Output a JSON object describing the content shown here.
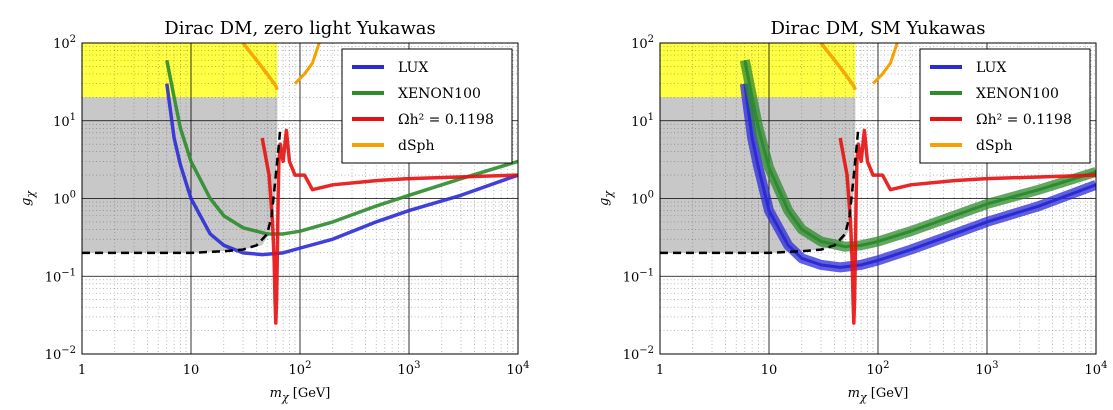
{
  "chart_data": [
    {
      "type": "line",
      "title": "Dirac DM, zero light Yukawas",
      "xlabel": "m_χ [GeV]",
      "ylabel": "g_χ",
      "xscale": "log",
      "yscale": "log",
      "xlim": [
        1,
        10000
      ],
      "ylim": [
        0.01,
        100
      ],
      "xticks": [
        1,
        10,
        100,
        1000,
        10000
      ],
      "xtick_labels": [
        "1",
        "10",
        "10",
        "10",
        "10"
      ],
      "xtick_sup": [
        "",
        "",
        "2",
        "3",
        "4"
      ],
      "yticks": [
        0.01,
        0.1,
        1,
        10,
        100
      ],
      "ytick_labels": [
        "10",
        "10",
        "10",
        "10",
        "10"
      ],
      "ytick_sup": [
        "−2",
        "−1",
        "0",
        "1",
        "2"
      ],
      "grid": true,
      "legend_position": "top-right",
      "shaded_regions": [
        {
          "kind": "excluded",
          "color": "#c8c8c8",
          "x": [
            1,
            62
          ],
          "y_from": [
            0.2,
            0.2,
            0.22,
            0.25,
            0.4,
            1.5,
            8
          ],
          "x_points": [
            1,
            10,
            30,
            45,
            55,
            60,
            62
          ],
          "y_to": 100
        },
        {
          "kind": "dSph",
          "color": "#ffff44",
          "x": [
            1,
            62
          ],
          "y_from": 20,
          "y_to": 100
        }
      ],
      "series": [
        {
          "name": "LUX",
          "color": "#2b2bd6",
          "band": false,
          "x": [
            6,
            7,
            8,
            10,
            15,
            20,
            30,
            45,
            70,
            100,
            200,
            500,
            1000,
            3000,
            10000
          ],
          "y": [
            30,
            6,
            2.7,
            1.0,
            0.35,
            0.25,
            0.2,
            0.19,
            0.2,
            0.23,
            0.3,
            0.5,
            0.7,
            1.1,
            2.0
          ]
        },
        {
          "name": "XENON100",
          "color": "#2e8b2e",
          "band": false,
          "x": [
            6,
            7,
            8,
            10,
            15,
            20,
            30,
            50,
            70,
            100,
            200,
            500,
            1000,
            3000,
            10000
          ],
          "y": [
            60,
            20,
            8,
            3,
            1,
            0.6,
            0.42,
            0.35,
            0.35,
            0.38,
            0.5,
            0.8,
            1.1,
            1.8,
            3.0
          ]
        },
        {
          "name": "Ωh² = 0.1198",
          "color": "#e81010",
          "band": false,
          "x": [
            45,
            52,
            56,
            58,
            59,
            60,
            61,
            62,
            63,
            64,
            66,
            70,
            75,
            80,
            90,
            110,
            130,
            200,
            500,
            1000,
            10000
          ],
          "y": [
            6,
            2,
            0.5,
            0.15,
            0.05,
            0.025,
            0.05,
            0.2,
            1,
            3,
            5,
            3,
            7.5,
            3,
            2,
            2,
            1.3,
            1.5,
            1.7,
            1.8,
            2.0
          ]
        },
        {
          "name": "dSph",
          "color": "#f5a100",
          "band": false,
          "x": [
            30,
            40,
            50,
            60,
            62
          ],
          "y": [
            100,
            60,
            40,
            28,
            25
          ],
          "x2": [
            90,
            100,
            110,
            130,
            150
          ],
          "y2": [
            30,
            35,
            40,
            55,
            100
          ]
        },
        {
          "name": "",
          "color": "#000000",
          "dashed": true,
          "x": [
            1,
            5,
            10,
            20,
            30,
            40,
            50,
            55,
            60,
            64,
            66
          ],
          "y": [
            0.2,
            0.2,
            0.2,
            0.21,
            0.22,
            0.25,
            0.35,
            0.6,
            2,
            5,
            8
          ]
        }
      ]
    },
    {
      "type": "line",
      "title": "Dirac DM, SM Yukawas",
      "xlabel": "m_χ [GeV]",
      "ylabel": "g_χ",
      "xscale": "log",
      "yscale": "log",
      "xlim": [
        1,
        10000
      ],
      "ylim": [
        0.01,
        100
      ],
      "xticks": [
        1,
        10,
        100,
        1000,
        10000
      ],
      "xtick_labels": [
        "1",
        "10",
        "10",
        "10",
        "10"
      ],
      "xtick_sup": [
        "",
        "",
        "2",
        "3",
        "4"
      ],
      "yticks": [
        0.01,
        0.1,
        1,
        10,
        100
      ],
      "ytick_labels": [
        "10",
        "10",
        "10",
        "10",
        "10"
      ],
      "ytick_sup": [
        "−2",
        "−1",
        "0",
        "1",
        "2"
      ],
      "grid": true,
      "legend_position": "top-right",
      "shaded_regions": [
        {
          "kind": "excluded",
          "color": "#c8c8c8",
          "x": [
            1,
            62
          ],
          "y_from": [
            0.2,
            0.2,
            0.22,
            0.25,
            0.4,
            1.5,
            8
          ],
          "x_points": [
            1,
            10,
            30,
            45,
            55,
            60,
            62
          ],
          "y_to": 100
        },
        {
          "kind": "dSph",
          "color": "#ffff44",
          "x": [
            1,
            62
          ],
          "y_from": 20,
          "y_to": 100
        }
      ],
      "series": [
        {
          "name": "LUX",
          "color": "#2b2bd6",
          "band": true,
          "x": [
            6,
            7,
            8,
            10,
            15,
            20,
            30,
            45,
            70,
            100,
            200,
            500,
            1000,
            3000,
            10000
          ],
          "y": [
            30,
            6,
            2.5,
            0.7,
            0.25,
            0.17,
            0.14,
            0.13,
            0.14,
            0.16,
            0.22,
            0.35,
            0.5,
            0.8,
            1.5
          ]
        },
        {
          "name": "XENON100",
          "color": "#2e8b2e",
          "band": true,
          "x": [
            6,
            7,
            8,
            10,
            15,
            20,
            30,
            50,
            70,
            100,
            200,
            500,
            1000,
            3000,
            10000
          ],
          "y": [
            60,
            20,
            8,
            2.5,
            0.7,
            0.4,
            0.28,
            0.24,
            0.25,
            0.28,
            0.38,
            0.6,
            0.85,
            1.3,
            2.2
          ]
        },
        {
          "name": "Ωh² = 0.1198",
          "color": "#e81010",
          "band": false,
          "x": [
            45,
            52,
            56,
            58,
            59,
            60,
            61,
            62,
            63,
            64,
            66,
            70,
            75,
            80,
            90,
            110,
            130,
            200,
            500,
            1000,
            10000
          ],
          "y": [
            6,
            2,
            0.5,
            0.15,
            0.05,
            0.025,
            0.05,
            0.2,
            1,
            3,
            5,
            3,
            7.5,
            3,
            2,
            2,
            1.3,
            1.5,
            1.7,
            1.8,
            2.0
          ]
        },
        {
          "name": "dSph",
          "color": "#f5a100",
          "band": false,
          "x": [
            30,
            40,
            50,
            60,
            62
          ],
          "y": [
            100,
            60,
            40,
            28,
            25
          ],
          "x2": [
            90,
            100,
            110,
            130,
            150
          ],
          "y2": [
            30,
            35,
            40,
            55,
            100
          ]
        },
        {
          "name": "",
          "color": "#000000",
          "dashed": true,
          "x": [
            1,
            5,
            10,
            20,
            30,
            40,
            50,
            55,
            60,
            64,
            66
          ],
          "y": [
            0.2,
            0.2,
            0.2,
            0.21,
            0.22,
            0.25,
            0.35,
            0.6,
            2,
            5,
            8
          ]
        }
      ]
    }
  ]
}
